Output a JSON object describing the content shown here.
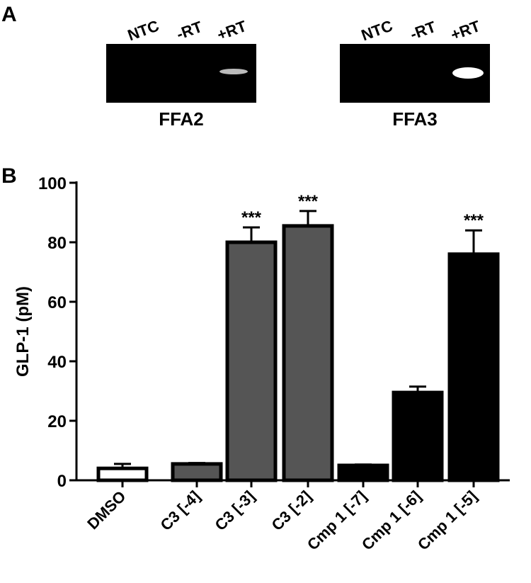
{
  "panel_labels": [
    "A",
    "B"
  ],
  "gels": [
    {
      "lanes": [
        "NTC",
        "-RT",
        "+RT"
      ],
      "label": "FFA2"
    },
    {
      "lanes": [
        "NTC",
        "-RT",
        "+RT"
      ],
      "label": "FFA3"
    }
  ],
  "chart_data": {
    "type": "bar",
    "y_label": "GLP-1 (pM)",
    "categories": [
      "DMSO",
      "C3 [-4]",
      "C3 [-3]",
      "C3 [-2]",
      "Cmp 1 [-7]",
      "Cmp 1 [-6]",
      "Cmp 1 [-5]"
    ],
    "values": [
      4,
      5.5,
      80,
      85.5,
      5,
      29.5,
      76
    ],
    "errors": [
      1.5,
      0.3,
      5,
      5,
      0.3,
      2,
      8
    ],
    "colors": [
      "#ffffff",
      "#555555",
      "#555555",
      "#555555",
      "#000000",
      "#000000",
      "#000000"
    ],
    "significance": [
      null,
      null,
      "***",
      "***",
      null,
      null,
      "***"
    ],
    "ylim": [
      0,
      100
    ],
    "yticks": [
      0,
      20,
      40,
      60,
      80,
      100
    ]
  }
}
